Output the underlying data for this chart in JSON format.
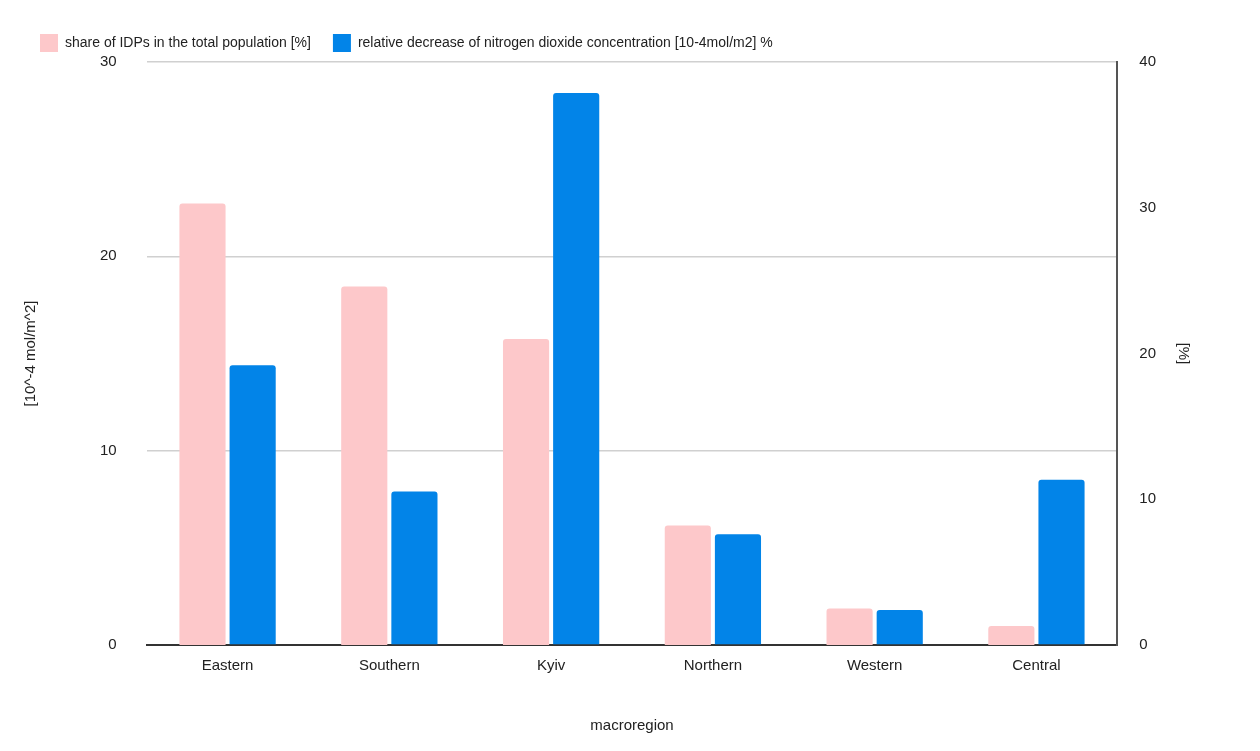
{
  "chart_data": {
    "type": "bar",
    "xlabel": "macroregion",
    "ylabel": "[10^-4 mol/m^2]",
    "y2label": "[%]",
    "categories": [
      "Eastern",
      "Southern",
      "Kyiv",
      "Northern",
      "Western",
      "Central"
    ],
    "series": [
      {
        "name": "share of IDPs in the total population [%]",
        "color": "#fdc8ca",
        "axis": "y2",
        "values": [
          30.3,
          24.6,
          21.0,
          8.2,
          2.5,
          1.3
        ]
      },
      {
        "name": "relative decrease of nitrogen dioxide concentration [10-4mol/m2] %",
        "color": "#0284e8",
        "values": [
          14.4,
          7.9,
          28.4,
          5.7,
          1.8,
          8.5
        ]
      }
    ],
    "ylim": [
      0,
      30
    ],
    "yticks": [
      0,
      10,
      20,
      30
    ],
    "y2lim": [
      0,
      40
    ],
    "y2ticks": [
      0,
      10,
      20,
      30,
      40
    ],
    "grid": "y",
    "legend": "top left"
  }
}
